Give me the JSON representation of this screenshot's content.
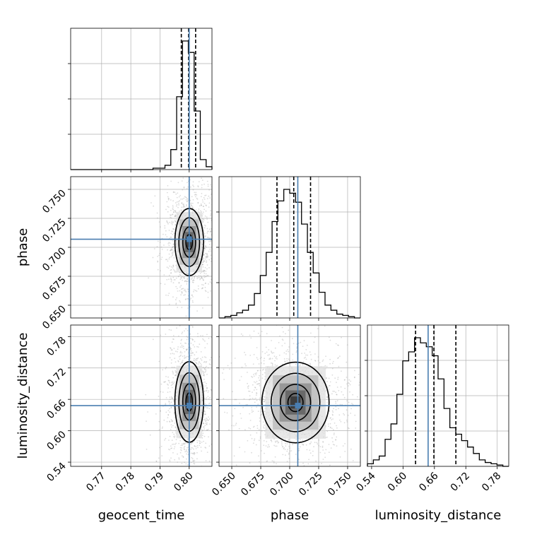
{
  "chart_data": {
    "type": "corner",
    "parameters": [
      "geocent_time",
      "phase",
      "luminosity_distance"
    ],
    "truth": {
      "geocent_time": 0.8,
      "phase": 0.707,
      "luminosity_distance": 0.648
    },
    "quantiles": {
      "geocent_time": [
        0.7973,
        0.7998,
        0.8022
      ],
      "phase": [
        0.689,
        0.7035,
        0.718
      ],
      "luminosity_distance": [
        0.624,
        0.659,
        0.701
      ]
    },
    "ranges": {
      "geocent_time": [
        0.7594,
        0.8078
      ],
      "phase": [
        0.639,
        0.761
      ],
      "luminosity_distance": [
        0.532,
        0.802
      ]
    },
    "ticks": {
      "geocent_time": [
        0.77,
        0.78,
        0.79,
        0.8
      ],
      "phase": [
        0.65,
        0.675,
        0.7,
        0.725,
        0.75
      ],
      "luminosity_distance": [
        0.54,
        0.6,
        0.66,
        0.72,
        0.78
      ]
    },
    "tick_labels": {
      "geocent_time": [
        "0.77",
        "0.78",
        "0.79",
        "0.80"
      ],
      "phase": [
        "0.650",
        "0.675",
        "0.700",
        "0.725",
        "0.750"
      ],
      "luminosity_distance": [
        "0.54",
        "0.60",
        "0.66",
        "0.72",
        "0.78"
      ]
    },
    "histograms": {
      "geocent_time": {
        "edges": [
          0.7594,
          0.7614,
          0.7634,
          0.7654,
          0.7675,
          0.7695,
          0.7715,
          0.7735,
          0.7755,
          0.7775,
          0.7796,
          0.7816,
          0.7836,
          0.7856,
          0.7876,
          0.7896,
          0.7917,
          0.7937,
          0.7957,
          0.7977,
          0.7997,
          0.8017,
          0.8038,
          0.8058,
          0.8078
        ],
        "counts": [
          0,
          0,
          0,
          0,
          0,
          0,
          0,
          0,
          0,
          0,
          0,
          0,
          0,
          0,
          0.01,
          0.01,
          0.03,
          0.14,
          0.51,
          0.9,
          0.82,
          0.41,
          0.07,
          0.02
        ]
      },
      "phase": {
        "edges": [
          0.639,
          0.6441,
          0.6492,
          0.6543,
          0.6593,
          0.6644,
          0.6695,
          0.6746,
          0.6797,
          0.6848,
          0.6898,
          0.6949,
          0.7,
          0.7051,
          0.7102,
          0.7153,
          0.7203,
          0.7254,
          0.7305,
          0.7356,
          0.7407,
          0.7458,
          0.7508,
          0.7559,
          0.761
        ],
        "counts": [
          0,
          0.01,
          0.02,
          0.04,
          0.06,
          0.1,
          0.19,
          0.33,
          0.51,
          0.75,
          0.91,
          1.0,
          0.97,
          0.9,
          0.73,
          0.51,
          0.35,
          0.2,
          0.1,
          0.06,
          0.03,
          0.02,
          0.01,
          0
        ]
      },
      "luminosity_distance": {
        "edges": [
          0.532,
          0.5433,
          0.5545,
          0.5658,
          0.577,
          0.5883,
          0.5995,
          0.6108,
          0.622,
          0.6333,
          0.6445,
          0.6558,
          0.667,
          0.6783,
          0.6895,
          0.7008,
          0.712,
          0.7233,
          0.7345,
          0.7458,
          0.757,
          0.7683,
          0.7795,
          0.7908,
          0.802
        ],
        "counts": [
          0.02,
          0.05,
          0.08,
          0.21,
          0.33,
          0.56,
          0.82,
          0.89,
          1.0,
          0.96,
          0.93,
          0.86,
          0.68,
          0.45,
          0.3,
          0.25,
          0.2,
          0.15,
          0.1,
          0.05,
          0.03,
          0.02,
          0.01,
          0
        ]
      }
    },
    "contour_centers": [
      {
        "x": "geocent_time",
        "y": "phase",
        "cx": 0.8,
        "cy": 0.7045
      },
      {
        "x": "geocent_time",
        "y": "luminosity_distance",
        "cx": 0.8,
        "cy": 0.655
      },
      {
        "x": "phase",
        "y": "luminosity_distance",
        "cx": 0.705,
        "cy": 0.654
      }
    ],
    "grid": true,
    "colors": {
      "truth": "#4a7eb0",
      "hist": "#000000",
      "contour": "#000000",
      "grid": "#b0b0b0",
      "scatter": "#9a9a9a"
    }
  }
}
